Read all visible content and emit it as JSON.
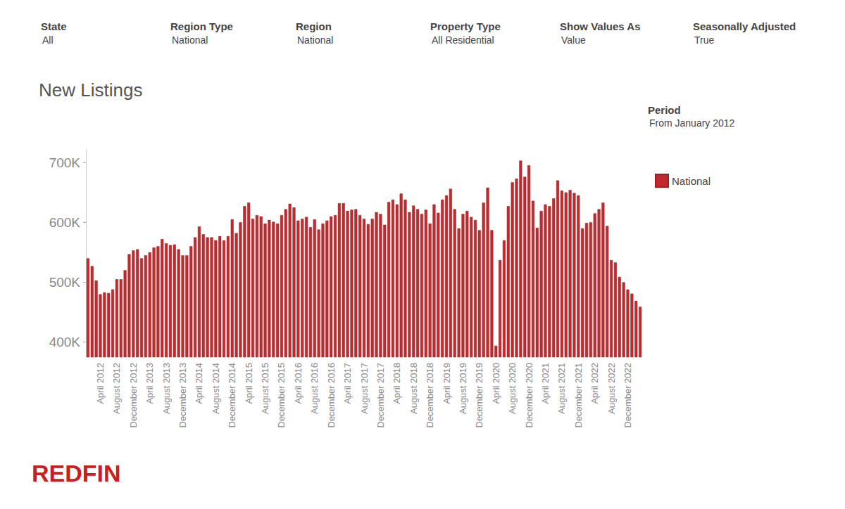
{
  "chart_data": {
    "type": "bar",
    "title": "New Listings",
    "filters": [
      {
        "label": "State",
        "value": "All"
      },
      {
        "label": "Region Type",
        "value": "National"
      },
      {
        "label": "Region",
        "value": "National"
      },
      {
        "label": "Property Type",
        "value": "All Residential"
      },
      {
        "label": "Show Values As",
        "value": "Value"
      },
      {
        "label": "Seasonally Adjusted",
        "value": "True"
      }
    ],
    "period": {
      "label": "Period",
      "value": "From January 2012"
    },
    "logo": "REDFIN",
    "categories": [
      null,
      null,
      null,
      "April 2012",
      null,
      null,
      null,
      "August 2012",
      null,
      null,
      null,
      "December 2012",
      null,
      null,
      null,
      "April 2013",
      null,
      null,
      null,
      "August 2013",
      null,
      null,
      null,
      "December 2013",
      null,
      null,
      null,
      "April 2014",
      null,
      null,
      null,
      "August 2014",
      null,
      null,
      null,
      "December 2014",
      null,
      null,
      null,
      "April 2015",
      null,
      null,
      null,
      "August 2015",
      null,
      null,
      null,
      "December 2015",
      null,
      null,
      null,
      "April 2016",
      null,
      null,
      null,
      "August 2016",
      null,
      null,
      null,
      "December 2016",
      null,
      null,
      null,
      "April 2017",
      null,
      null,
      null,
      "August 2017",
      null,
      null,
      null,
      "December 2017",
      null,
      null,
      null,
      "April 2018",
      null,
      null,
      null,
      "August 2018",
      null,
      null,
      null,
      "December 2018",
      null,
      null,
      null,
      "April 2019",
      null,
      null,
      null,
      "August 2019",
      null,
      null,
      null,
      "December 2019",
      null,
      null,
      null,
      "April 2020",
      null,
      null,
      null,
      "August 2020",
      null,
      null,
      null,
      "December 2020",
      null,
      null,
      null,
      "April 2021",
      null,
      null,
      null,
      "August 2021",
      null,
      null,
      null,
      "December 2021",
      null,
      null,
      null,
      "April 2022",
      null,
      null,
      null,
      "August 2022",
      null,
      null,
      null,
      "December 2022",
      null,
      null,
      null
    ],
    "series": [
      {
        "name": "National",
        "color": "#c22a2e",
        "values": [
          540000,
          527000,
          503000,
          480000,
          483000,
          482000,
          488000,
          505000,
          505000,
          520000,
          547000,
          553000,
          555000,
          540000,
          545000,
          550000,
          558000,
          560000,
          572000,
          565000,
          562000,
          563000,
          555000,
          545000,
          545000,
          560000,
          575000,
          593000,
          580000,
          575000,
          575000,
          570000,
          577000,
          570000,
          577000,
          605000,
          582000,
          600000,
          627000,
          633000,
          606000,
          612000,
          610000,
          598000,
          604000,
          601000,
          598000,
          612000,
          622000,
          631000,
          625000,
          603000,
          606000,
          609000,
          592000,
          605000,
          588000,
          598000,
          603000,
          610000,
          612000,
          632000,
          632000,
          619000,
          621000,
          622000,
          612000,
          606000,
          597000,
          606000,
          617000,
          614000,
          596000,
          634000,
          638000,
          630000,
          648000,
          638000,
          617000,
          628000,
          622000,
          614000,
          621000,
          598000,
          630000,
          616000,
          638000,
          645000,
          656000,
          622000,
          590000,
          614000,
          619000,
          609000,
          604000,
          587000,
          633000,
          658000,
          587000,
          394000,
          537000,
          570000,
          627000,
          667000,
          673000,
          703000,
          676000,
          695000,
          636000,
          591000,
          619000,
          630000,
          627000,
          640000,
          670000,
          653000,
          650000,
          654000,
          649000,
          645000,
          590000,
          599000,
          600000,
          615000,
          622000,
          633000,
          594000,
          537000,
          533000,
          509000,
          500000,
          488000,
          481000,
          469000,
          459000
        ]
      }
    ],
    "ylim": [
      375000,
      720000
    ],
    "yticks": [
      {
        "value": 400000,
        "label": "400K"
      },
      {
        "value": 500000,
        "label": "500K"
      },
      {
        "value": 600000,
        "label": "600K"
      },
      {
        "value": 700000,
        "label": "700K"
      }
    ],
    "grid": false,
    "legend": "right"
  }
}
